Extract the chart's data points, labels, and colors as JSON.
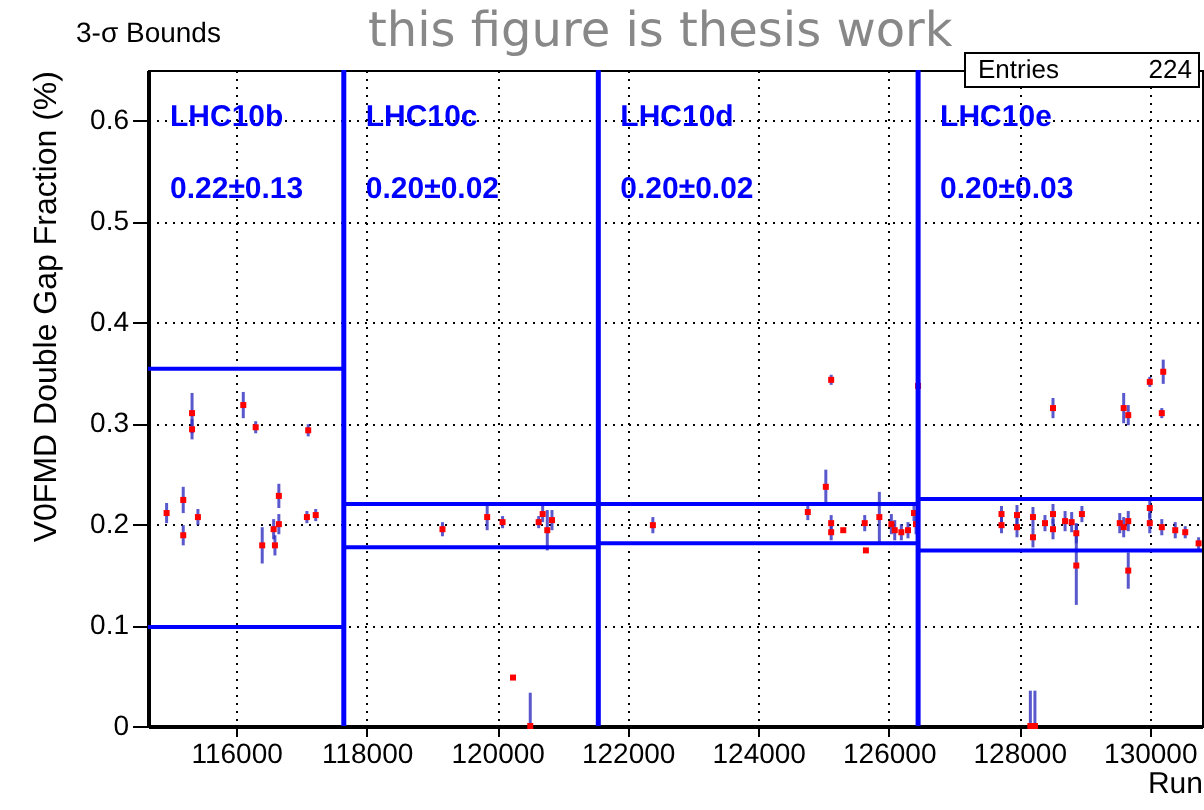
{
  "chart_data": {
    "type": "scatter",
    "title": "3-σ Bounds",
    "subtitle": "this figure is thesis work",
    "xlabel": "Run",
    "ylabel": "V0FMD Double Gap Fraction (%)",
    "xlim": [
      114650,
      130800
    ],
    "ylim": [
      0,
      0.65
    ],
    "xticks": [
      116000,
      118000,
      120000,
      122000,
      124000,
      126000,
      128000,
      130000
    ],
    "yticks": [
      {
        "value": 0,
        "label": "0"
      },
      0.1,
      0.2,
      0.3,
      0.4,
      0.5,
      0.6
    ],
    "grid": true,
    "series": [
      {
        "type": "scatter",
        "color": "#ff0000",
        "marker": "square",
        "x": [
          114935,
          115190,
          115190,
          115325,
          115325,
          115415,
          116110,
          116300,
          116400,
          116575,
          116595,
          116655,
          116655,
          117085,
          117105,
          117220,
          119162,
          119847,
          120083,
          120243,
          120507,
          120636,
          120697,
          120768,
          120840,
          122386,
          124760,
          125036,
          125118,
          125118,
          125118,
          125303,
          125632,
          125650,
          125856,
          126040,
          126092,
          126193,
          126295,
          126387,
          126418,
          126449,
          127728,
          127728,
          127965,
          127965,
          128170,
          128240,
          128210,
          128210,
          128394,
          128517,
          128517,
          128517,
          128702,
          128803,
          128874,
          128874,
          128960,
          129540,
          129600,
          129600,
          129670,
          129670,
          129670,
          130000,
          130000,
          130000,
          130184,
          130206,
          130184,
          130390,
          130543,
          130748
        ],
        "values": [
          0.211,
          0.224,
          0.189,
          0.31,
          0.294,
          0.207,
          0.318,
          0.296,
          0.179,
          0.195,
          0.179,
          0.228,
          0.2,
          0.207,
          0.293,
          0.209,
          0.195,
          0.207,
          0.202,
          0.048,
          0,
          0.202,
          0.21,
          0.194,
          0.204,
          0.199,
          0.212,
          0.237,
          0.343,
          0.201,
          0.192,
          0.194,
          0.201,
          0.174,
          0.207,
          0.2,
          0.194,
          0.192,
          0.194,
          0.211,
          0.2,
          0.337,
          0.21,
          0.199,
          0.209,
          0.197,
          0,
          0,
          0.207,
          0.187,
          0.201,
          0.315,
          0.21,
          0.195,
          0.203,
          0.202,
          0.191,
          0.159,
          0.21,
          0.201,
          0.315,
          0.197,
          0.308,
          0.154,
          0.203,
          0.341,
          0.216,
          0.201,
          0.31,
          0.351,
          0.197,
          0.194,
          0.192,
          0.181
        ],
        "errors": [
          0.01,
          0.013,
          0.01,
          0.02,
          0.01,
          0.008,
          0.013,
          0.006,
          0.018,
          0.01,
          0.01,
          0.012,
          0.01,
          0.006,
          0.006,
          0.006,
          0.007,
          0.013,
          0.006,
          null,
          [
            0,
            0.033
          ],
          0.006,
          0.008,
          0.02,
          0.01,
          0.008,
          0.008,
          0.017,
          0.005,
          0.008,
          0.008,
          null,
          0.008,
          null,
          0.025,
          0.01,
          0.01,
          0.008,
          0.008,
          0.008,
          0.01,
          0.005,
          0.008,
          0.008,
          0.01,
          0.01,
          [
            0,
            0.035
          ],
          [
            0,
            0.035
          ],
          0.01,
          0.01,
          0.008,
          0.01,
          0.01,
          0.01,
          0.01,
          0.01,
          0.01,
          [
            0.12,
            0.2
          ],
          0.008,
          0.01,
          0.015,
          0.01,
          0.01,
          0.018,
          0.01,
          0.005,
          0.01,
          0.01,
          0.005,
          0.012,
          0.008,
          0.008,
          0.006,
          0.006
        ]
      },
      {
        "type": "line",
        "color": "#0000ff",
        "x": [
          114650,
          117650
        ],
        "values": [
          0.354,
          0.354
        ]
      },
      {
        "type": "line",
        "color": "#0000ff",
        "x": [
          114650,
          117650
        ],
        "values": [
          0.098,
          0.098
        ]
      },
      {
        "type": "line",
        "color": "#0000ff",
        "x": [
          117650,
          121550,
          126450
        ],
        "values": [
          0.22,
          0.22,
          0.22
        ]
      },
      {
        "type": "line",
        "color": "#0000ff",
        "x": [
          117650,
          121550
        ],
        "values": [
          0.177,
          0.177
        ]
      },
      {
        "type": "line",
        "color": "#0000ff",
        "x": [
          121550,
          126450
        ],
        "values": [
          0.181,
          0.181
        ]
      },
      {
        "type": "line",
        "color": "#0000ff",
        "x": [
          126450,
          130800
        ],
        "values": [
          0.225,
          0.225
        ]
      },
      {
        "type": "line",
        "color": "#0000ff",
        "x": [
          126450,
          130800
        ],
        "values": [
          0.174,
          0.174
        ]
      }
    ],
    "ref_lines": [
      {
        "axis": "x",
        "value": 117650,
        "color": "#0000ff"
      },
      {
        "axis": "x",
        "value": 121550,
        "color": "#0000ff"
      },
      {
        "axis": "x",
        "value": 126450,
        "color": "#0000ff"
      }
    ],
    "annotations": [
      "LHC10b",
      "0.22±0.13",
      "LHC10c",
      "0.20±0.02",
      "LHC10d",
      "0.20±0.02",
      "LHC10e",
      "0.20±0.03",
      "Entries",
      "224"
    ]
  }
}
